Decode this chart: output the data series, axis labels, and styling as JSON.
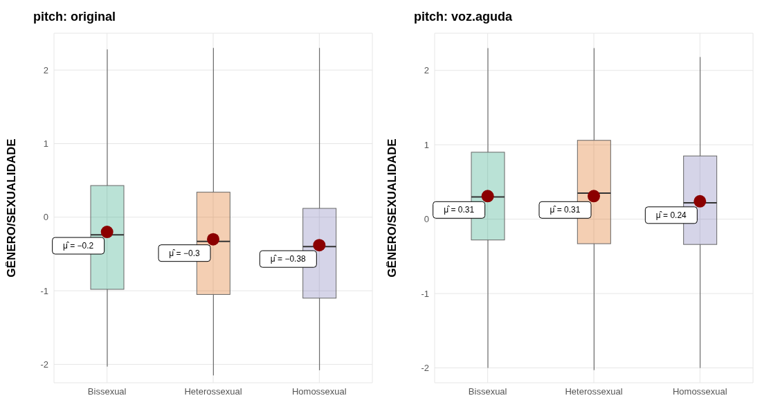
{
  "chart_data": [
    {
      "type": "box",
      "title": "pitch: original",
      "ylabel": "GÊNERO/SEXUALIDADE",
      "categories": [
        "Bissexual",
        "Heterossexual",
        "Homossexual"
      ],
      "boxes": [
        {
          "low": -2.03,
          "q1": -0.98,
          "median": -0.24,
          "q3": 0.43,
          "high": 2.28,
          "mean": -0.2
        },
        {
          "low": -2.15,
          "q1": -1.05,
          "median": -0.33,
          "q3": 0.34,
          "high": 2.3,
          "mean": -0.3
        },
        {
          "low": -2.08,
          "q1": -1.1,
          "median": -0.4,
          "q3": 0.12,
          "high": 2.3,
          "mean": -0.38
        }
      ],
      "colors": [
        "#1b9e77",
        "#d95f02",
        "#7570b3"
      ],
      "ylim": [
        -2.25,
        2.5
      ],
      "yticks": [
        -2,
        -1,
        0,
        1,
        2
      ],
      "grid": true,
      "annotations": [
        {
          "text": "μ̂ = −0.2",
          "x": "Bissexual",
          "y": -0.2
        },
        {
          "text": "μ̂ = −0.3",
          "x": "Heterossexual",
          "y": -0.3
        },
        {
          "text": "μ̂ = −0.38",
          "x": "Homossexual",
          "y": -0.38
        }
      ]
    },
    {
      "type": "box",
      "title": "pitch: voz.aguda",
      "ylabel": "GÊNERO/SEXUALIDADE",
      "categories": [
        "Bissexual",
        "Heterossexual",
        "Homossexual"
      ],
      "boxes": [
        {
          "low": -2.0,
          "q1": -0.28,
          "median": 0.3,
          "q3": 0.9,
          "high": 2.3,
          "mean": 0.31
        },
        {
          "low": -2.03,
          "q1": -0.33,
          "median": 0.35,
          "q3": 1.06,
          "high": 2.3,
          "mean": 0.31
        },
        {
          "low": -2.0,
          "q1": -0.34,
          "median": 0.22,
          "q3": 0.85,
          "high": 2.18,
          "mean": 0.24
        }
      ],
      "colors": [
        "#1b9e77",
        "#d95f02",
        "#7570b3"
      ],
      "ylim": [
        -2.2,
        2.5
      ],
      "yticks": [
        -2,
        -1,
        0,
        1,
        2
      ],
      "grid": true,
      "annotations": [
        {
          "text": "μ̂ = 0.31",
          "x": "Bissexual",
          "y": 0.31
        },
        {
          "text": "μ̂ = 0.31",
          "x": "Heterossexual",
          "y": 0.31
        },
        {
          "text": "μ̂ = 0.24",
          "x": "Homossexual",
          "y": 0.24
        }
      ]
    }
  ]
}
